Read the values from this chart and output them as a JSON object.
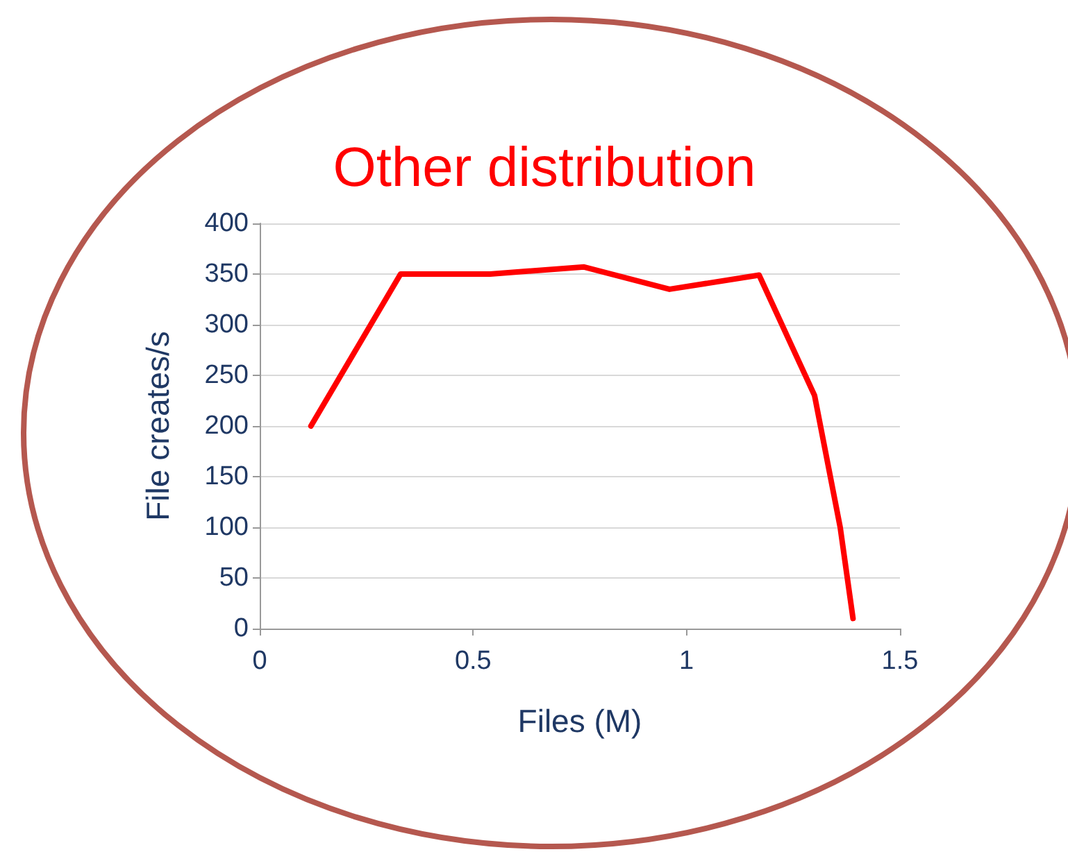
{
  "chart_data": {
    "type": "line",
    "title": "Other distribution",
    "xlabel": "Files (M)",
    "ylabel": "File creates/s",
    "x": [
      0.12,
      0.33,
      0.54,
      0.76,
      0.96,
      1.17,
      1.3,
      1.36,
      1.39
    ],
    "series": [
      {
        "color": "#ff0000",
        "values": [
          200,
          350,
          350,
          357,
          335,
          349,
          230,
          100,
          10
        ]
      }
    ],
    "xlim": [
      0,
      1.5
    ],
    "xticks": [
      0,
      0.5,
      1,
      1.5
    ],
    "ylim": [
      0,
      400
    ],
    "yticks": [
      0,
      50,
      100,
      150,
      200,
      250,
      300,
      350,
      400
    ],
    "grid": "y",
    "marker": "none",
    "line_style": "solid"
  }
}
